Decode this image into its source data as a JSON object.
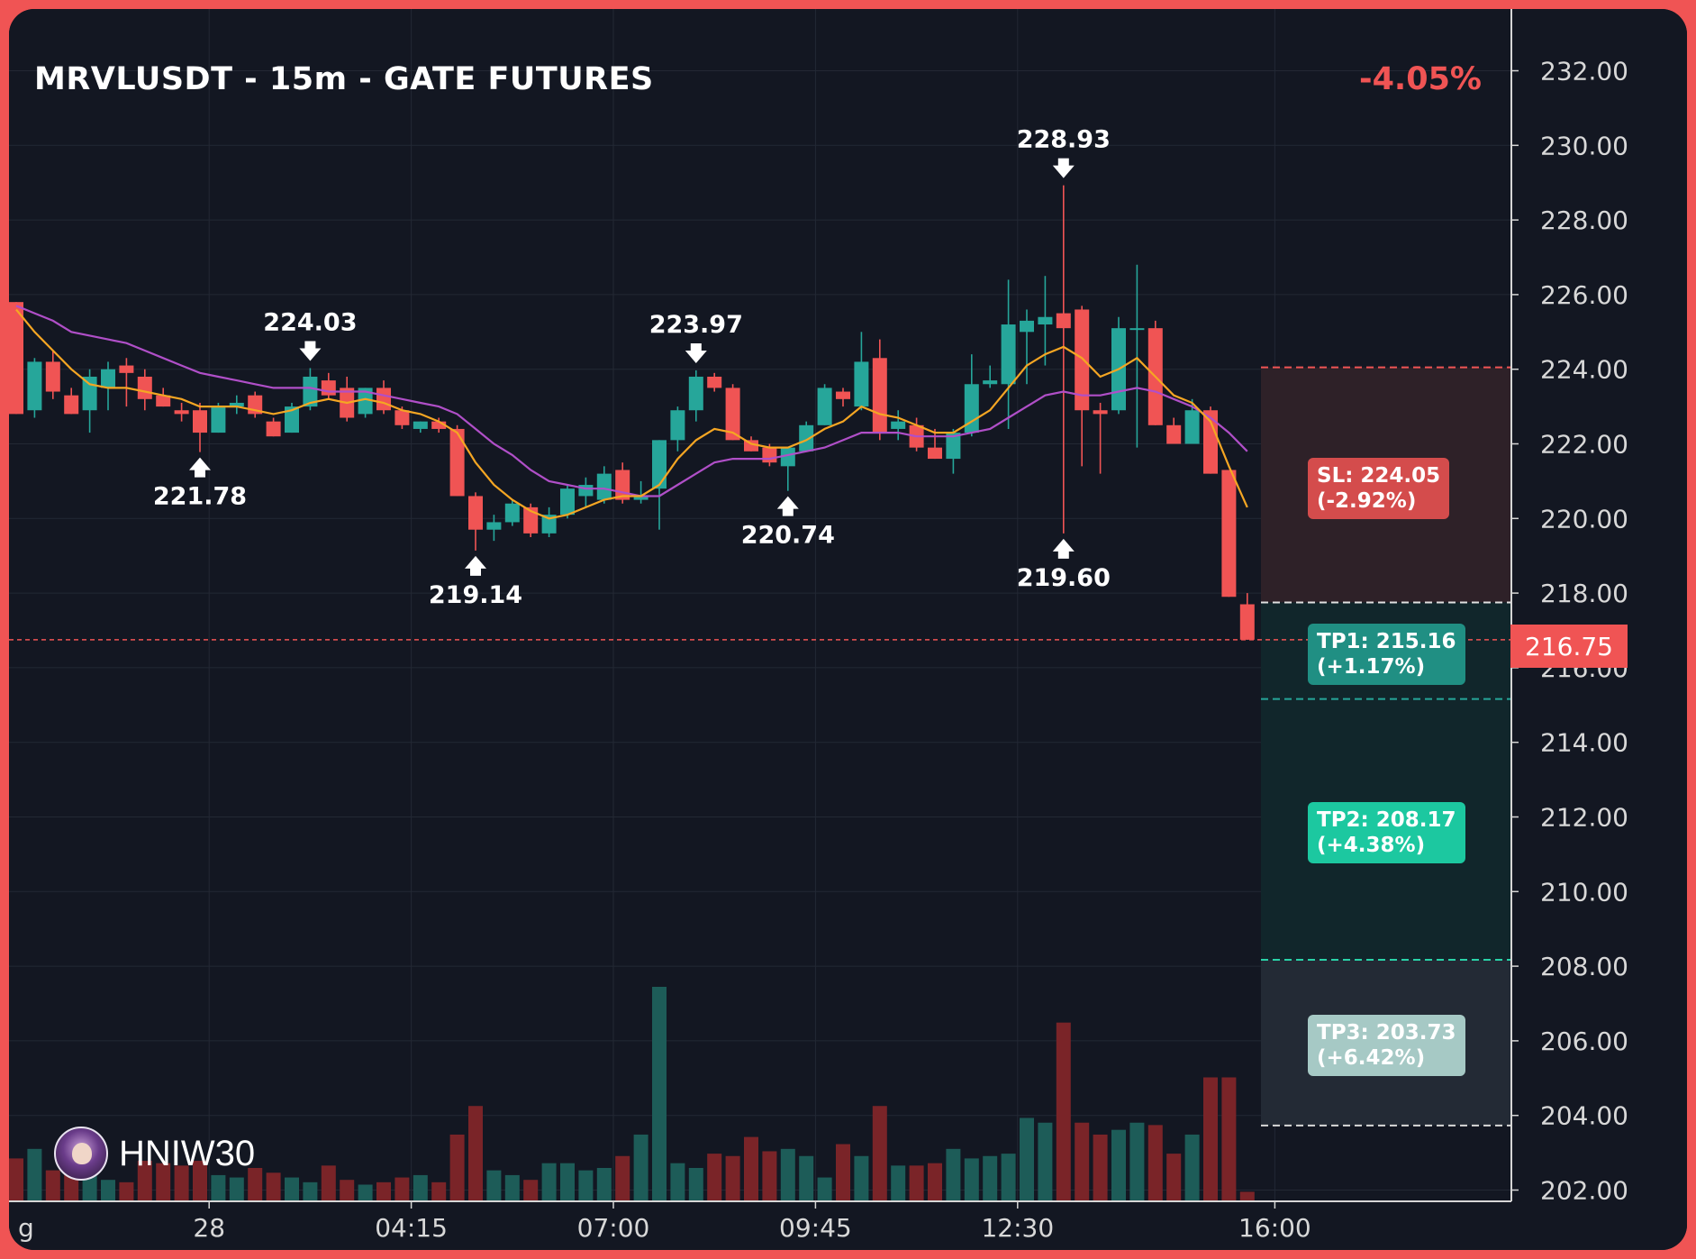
{
  "header": {
    "title": "MRVLUSDT - 15m - GATE FUTURES",
    "change": "-4.05%"
  },
  "watermark": {
    "name": "HNIW30",
    "icon": "avatar-icon"
  },
  "price_tag": "216.75",
  "colors": {
    "bg": "#131722",
    "up": "#26a69a",
    "down": "#f05454",
    "vol_up": "#1d5c58",
    "vol_down": "#7a2428",
    "ema_fast": "#f5a623",
    "ema_slow": "#b04fc8",
    "sl_zone": "#2e2128",
    "tp_zone": "#11262b",
    "tp3_zone": "#232a35"
  },
  "levels": {
    "sl": {
      "price": 224.05,
      "label": "SL: 224.05\n(-2.92%)"
    },
    "entry_line": 217.75,
    "tp1": {
      "price": 215.16,
      "label": "TP1: 215.16\n(+1.17%)"
    },
    "tp2": {
      "price": 208.17,
      "label": "TP2: 208.17\n(+4.38%)"
    },
    "tp3": {
      "price": 203.73,
      "label": "TP3: 203.73\n(+6.42%)"
    }
  },
  "chart_data": {
    "type": "candlestick",
    "symbol": "MRVLUSDT",
    "interval": "15m",
    "exchange": "GATE FUTURES",
    "ylim": [
      201.5,
      233.2
    ],
    "y_ticks": [
      "202.00",
      "204.00",
      "206.00",
      "208.00",
      "210.00",
      "212.00",
      "214.00",
      "216.00",
      "218.00",
      "220.00",
      "222.00",
      "224.00",
      "226.00",
      "228.00",
      "230.00",
      "232.00"
    ],
    "x_ticks": [
      {
        "label": "g",
        "bar": -0.6
      },
      {
        "label": "28",
        "bar": 10.5
      },
      {
        "label": "04:15",
        "bar": 21.5
      },
      {
        "label": "07:00",
        "bar": 32.5
      },
      {
        "label": "09:45",
        "bar": 43.5
      },
      {
        "label": "12:30",
        "bar": 54.5
      },
      {
        "label": "16:00",
        "bar": 68.5
      }
    ],
    "last_price": 216.75,
    "candles": [
      [
        225.8,
        225.8,
        222.8,
        222.8
      ],
      [
        222.9,
        224.3,
        222.7,
        224.2
      ],
      [
        224.2,
        224.5,
        223.2,
        223.4
      ],
      [
        223.3,
        223.5,
        222.8,
        222.8
      ],
      [
        222.9,
        224.0,
        222.3,
        223.8
      ],
      [
        223.5,
        224.2,
        222.9,
        224.0
      ],
      [
        224.1,
        224.3,
        223.0,
        223.9
      ],
      [
        223.8,
        224.0,
        222.9,
        223.2
      ],
      [
        223.3,
        223.5,
        223.0,
        223.0
      ],
      [
        222.9,
        223.1,
        222.6,
        222.8
      ],
      [
        222.9,
        223.1,
        221.78,
        222.3
      ],
      [
        222.3,
        223.1,
        222.3,
        223.0
      ],
      [
        223.0,
        223.3,
        222.8,
        223.1
      ],
      [
        223.3,
        223.4,
        222.7,
        222.8
      ],
      [
        222.6,
        222.7,
        222.2,
        222.2
      ],
      [
        222.3,
        223.1,
        222.3,
        223.0
      ],
      [
        223.0,
        224.03,
        222.9,
        223.8
      ],
      [
        223.7,
        223.9,
        223.2,
        223.3
      ],
      [
        223.5,
        223.8,
        222.6,
        222.7
      ],
      [
        222.8,
        223.5,
        222.7,
        223.5
      ],
      [
        223.5,
        223.7,
        222.8,
        222.9
      ],
      [
        222.9,
        223.0,
        222.4,
        222.5
      ],
      [
        222.4,
        222.6,
        222.3,
        222.6
      ],
      [
        222.6,
        222.7,
        222.3,
        222.4
      ],
      [
        222.4,
        222.5,
        220.6,
        220.6
      ],
      [
        220.6,
        220.7,
        219.14,
        219.7
      ],
      [
        219.7,
        220.1,
        219.4,
        219.9
      ],
      [
        219.9,
        220.5,
        219.8,
        220.4
      ],
      [
        220.3,
        220.4,
        219.5,
        219.6
      ],
      [
        219.6,
        220.3,
        219.5,
        220.1
      ],
      [
        220.1,
        220.9,
        220.0,
        220.8
      ],
      [
        220.6,
        221.1,
        220.3,
        220.9
      ],
      [
        220.5,
        221.4,
        220.4,
        221.2
      ],
      [
        221.3,
        221.5,
        220.4,
        220.5
      ],
      [
        220.5,
        221.0,
        220.4,
        220.6
      ],
      [
        220.8,
        222.1,
        219.7,
        222.1
      ],
      [
        222.1,
        223.0,
        221.8,
        222.9
      ],
      [
        222.9,
        223.97,
        222.6,
        223.8
      ],
      [
        223.8,
        223.9,
        223.4,
        223.5
      ],
      [
        223.5,
        223.6,
        222.1,
        222.1
      ],
      [
        222.1,
        222.2,
        221.8,
        221.8
      ],
      [
        221.9,
        222.0,
        221.4,
        221.5
      ],
      [
        221.4,
        221.6,
        220.74,
        221.9
      ],
      [
        221.8,
        222.6,
        221.8,
        222.5
      ],
      [
        222.5,
        223.6,
        222.5,
        223.5
      ],
      [
        223.4,
        223.5,
        223.0,
        223.2
      ],
      [
        223.0,
        225.0,
        222.9,
        224.2
      ],
      [
        224.3,
        224.8,
        222.1,
        222.3
      ],
      [
        222.4,
        222.9,
        222.1,
        222.6
      ],
      [
        222.5,
        222.7,
        221.8,
        221.9
      ],
      [
        221.9,
        222.4,
        221.6,
        221.6
      ],
      [
        221.6,
        222.4,
        221.2,
        222.3
      ],
      [
        222.3,
        224.4,
        222.2,
        223.6
      ],
      [
        223.6,
        224.1,
        223.5,
        223.7
      ],
      [
        223.6,
        226.4,
        222.4,
        225.2
      ],
      [
        225.0,
        225.6,
        223.6,
        225.3
      ],
      [
        225.2,
        226.5,
        224.1,
        225.4
      ],
      [
        225.5,
        228.93,
        219.6,
        225.1
      ],
      [
        225.6,
        225.7,
        221.4,
        222.9
      ],
      [
        222.9,
        223.1,
        221.2,
        222.8
      ],
      [
        222.9,
        225.4,
        222.8,
        225.1
      ],
      [
        225.1,
        226.8,
        221.9,
        225.1
      ],
      [
        225.1,
        225.3,
        222.5,
        222.5
      ],
      [
        222.5,
        222.7,
        222.0,
        222.0
      ],
      [
        222.0,
        223.2,
        222.0,
        222.9
      ],
      [
        222.9,
        223.0,
        221.2,
        221.2
      ],
      [
        221.3,
        221.3,
        217.9,
        217.9
      ],
      [
        217.7,
        218.0,
        216.75,
        216.75
      ]
    ],
    "ema_fast": [
      225.6,
      225.0,
      224.5,
      224.0,
      223.6,
      223.5,
      223.5,
      223.4,
      223.3,
      223.2,
      223.0,
      223.0,
      223.0,
      222.9,
      222.8,
      222.9,
      223.1,
      223.2,
      223.1,
      223.2,
      223.1,
      222.9,
      222.8,
      222.6,
      222.3,
      221.5,
      220.9,
      220.5,
      220.2,
      220.0,
      220.1,
      220.3,
      220.5,
      220.6,
      220.6,
      220.9,
      221.6,
      222.1,
      222.4,
      222.3,
      222.0,
      221.9,
      221.9,
      222.1,
      222.4,
      222.6,
      223.0,
      222.8,
      222.7,
      222.5,
      222.3,
      222.3,
      222.6,
      222.9,
      223.5,
      224.1,
      224.4,
      224.6,
      224.3,
      223.8,
      224.0,
      224.3,
      223.8,
      223.3,
      223.1,
      222.6,
      221.4,
      220.3
    ],
    "ema_slow": [
      225.7,
      225.5,
      225.3,
      225.0,
      224.9,
      224.8,
      224.7,
      224.5,
      224.3,
      224.1,
      223.9,
      223.8,
      223.7,
      223.6,
      223.5,
      223.5,
      223.5,
      223.4,
      223.4,
      223.4,
      223.3,
      223.2,
      223.1,
      223.0,
      222.8,
      222.4,
      222.0,
      221.7,
      221.3,
      221.0,
      220.9,
      220.8,
      220.8,
      220.7,
      220.6,
      220.6,
      220.9,
      221.2,
      221.5,
      221.6,
      221.6,
      221.6,
      221.7,
      221.8,
      221.9,
      222.1,
      222.3,
      222.3,
      222.3,
      222.2,
      222.2,
      222.2,
      222.3,
      222.4,
      222.7,
      223.0,
      223.3,
      223.4,
      223.3,
      223.3,
      223.4,
      223.5,
      223.4,
      223.2,
      223.0,
      222.7,
      222.3,
      221.8
    ],
    "volume": [
      36,
      44,
      26,
      24,
      32,
      18,
      16,
      34,
      32,
      30,
      34,
      22,
      20,
      28,
      24,
      20,
      16,
      30,
      18,
      14,
      16,
      20,
      22,
      16,
      56,
      80,
      26,
      22,
      18,
      32,
      32,
      26,
      28,
      38,
      56,
      180,
      32,
      28,
      40,
      38,
      54,
      42,
      44,
      38,
      20,
      48,
      38,
      80,
      30,
      30,
      32,
      44,
      36,
      38,
      40,
      70,
      66,
      150,
      66,
      56,
      60,
      66,
      64,
      40,
      56,
      104,
      104,
      8
    ],
    "annotations": [
      {
        "text": "224.03",
        "kind": "high",
        "bar": 16,
        "price": 224.03
      },
      {
        "text": "221.78",
        "kind": "low",
        "bar": 10,
        "price": 221.78
      },
      {
        "text": "223.97",
        "kind": "high",
        "bar": 37,
        "price": 223.97
      },
      {
        "text": "219.14",
        "kind": "low",
        "bar": 25,
        "price": 219.14
      },
      {
        "text": "220.74",
        "kind": "low",
        "bar": 42,
        "price": 220.74
      },
      {
        "text": "228.93",
        "kind": "high",
        "bar": 57,
        "price": 228.93
      },
      {
        "text": "219.60",
        "kind": "low",
        "bar": 57,
        "price": 219.6
      }
    ]
  }
}
